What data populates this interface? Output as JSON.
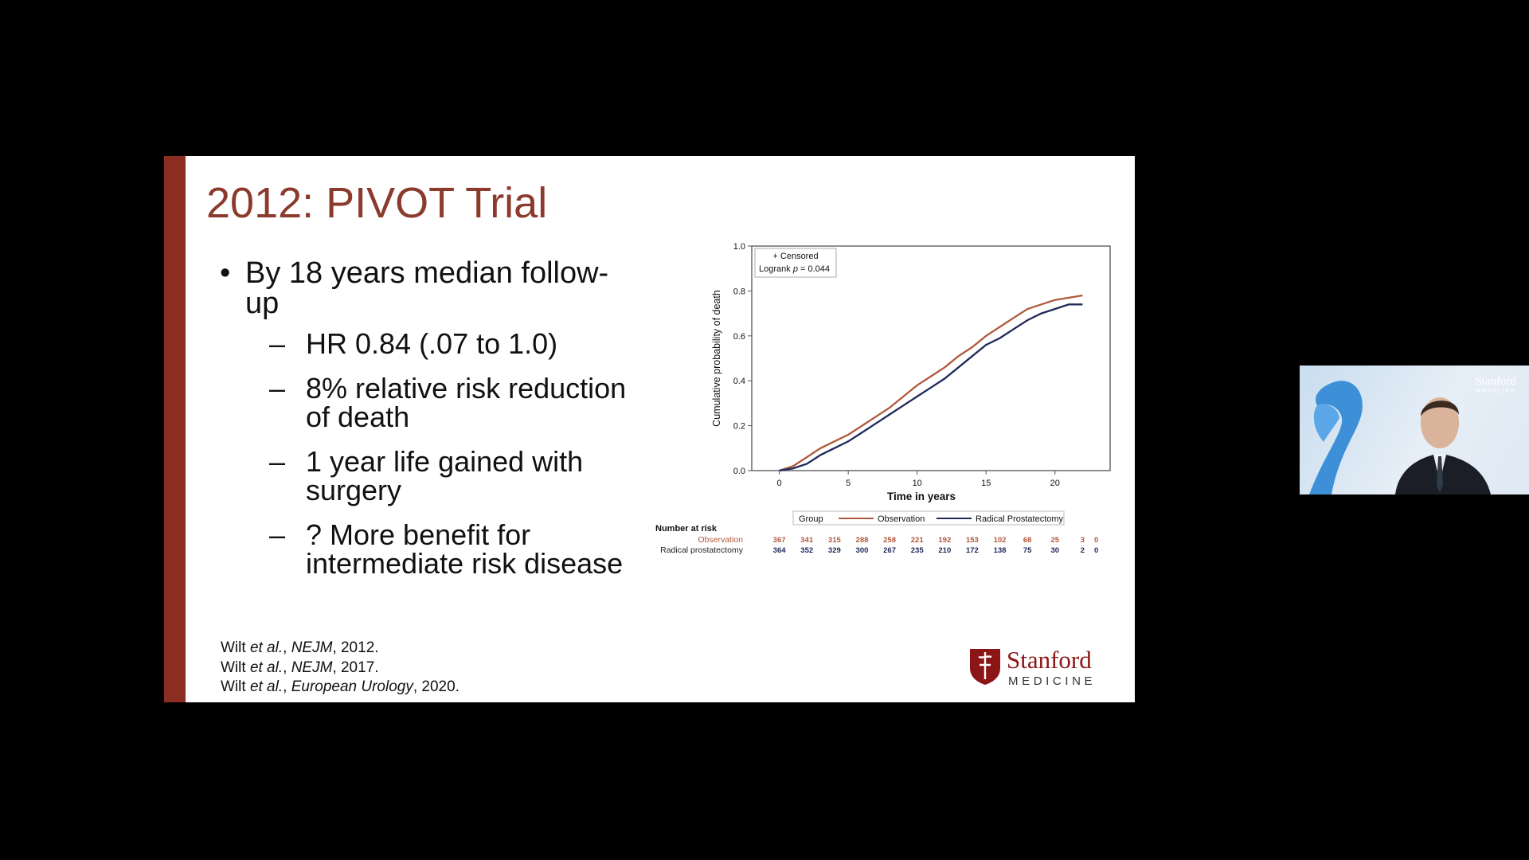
{
  "colors": {
    "accent": "#8c2d24",
    "title": "#8b3a2c",
    "observation": "#b05a3c",
    "prostatectomy": "#1f2a5a",
    "stanford_red": "#8c1515"
  },
  "slide": {
    "title": "2012: PIVOT Trial",
    "bullet": {
      "symbol": "•",
      "text": "By 18 years median follow-up",
      "subs": [
        {
          "symbol": "–",
          "text": "HR 0.84 (.07 to 1.0)"
        },
        {
          "symbol": "–",
          "text": "8% relative risk reduction of death"
        },
        {
          "symbol": "–",
          "text": "1 year life gained with surgery"
        },
        {
          "symbol": "–",
          "text": "? More benefit for intermediate risk disease"
        }
      ]
    },
    "citations": [
      {
        "author": "Wilt ",
        "etal": "et al.",
        "sep": ", ",
        "journal": "NEJM",
        "year": ", 2012."
      },
      {
        "author": "Wilt ",
        "etal": "et al.",
        "sep": ", ",
        "journal": "NEJM",
        "year": ", 2017."
      },
      {
        "author": "Wilt ",
        "etal": "et al.",
        "sep": ", ",
        "journal": "European Urology",
        "year": ", 2020."
      }
    ],
    "logo": {
      "word": "Stanford",
      "sub": "MEDICINE",
      "icon": "stanford-shield-icon"
    }
  },
  "chart_data": {
    "type": "line",
    "xlabel": "Time in years",
    "ylabel": "Cumulative probability of death",
    "xlim": [
      -2,
      24
    ],
    "ylim": [
      0,
      1.0
    ],
    "xticks": [
      0,
      5,
      10,
      15,
      20
    ],
    "yticks": [
      "0.0",
      "0.2",
      "0.4",
      "0.6",
      "0.8",
      "1.0"
    ],
    "grid": false,
    "annotation": {
      "censored": "+ Censored",
      "logrank_prefix": "Logrank ",
      "logrank_p": "p",
      "logrank_value": " = 0.044"
    },
    "legend": {
      "title": "Group",
      "position": "bottom"
    },
    "series": [
      {
        "name": "Observation",
        "x": [
          0,
          1,
          2,
          3,
          4,
          5,
          6,
          7,
          8,
          9,
          10,
          11,
          12,
          13,
          14,
          15,
          16,
          17,
          18,
          19,
          20,
          21,
          22
        ],
        "y": [
          0,
          0.02,
          0.06,
          0.1,
          0.13,
          0.16,
          0.2,
          0.24,
          0.28,
          0.33,
          0.38,
          0.42,
          0.46,
          0.51,
          0.55,
          0.6,
          0.64,
          0.68,
          0.72,
          0.74,
          0.76,
          0.77,
          0.78
        ]
      },
      {
        "name": "Radical Prostatectomy",
        "x": [
          0,
          1,
          2,
          3,
          4,
          5,
          6,
          7,
          8,
          9,
          10,
          11,
          12,
          13,
          14,
          15,
          16,
          17,
          18,
          19,
          20,
          21,
          22
        ],
        "y": [
          0,
          0.01,
          0.03,
          0.07,
          0.1,
          0.13,
          0.17,
          0.21,
          0.25,
          0.29,
          0.33,
          0.37,
          0.41,
          0.46,
          0.51,
          0.56,
          0.59,
          0.63,
          0.67,
          0.7,
          0.72,
          0.74,
          0.74
        ]
      }
    ],
    "risk_table": {
      "title": "Number at risk",
      "x": [
        0,
        2,
        4,
        6,
        8,
        10,
        12,
        14,
        16,
        18,
        20,
        22,
        23
      ],
      "rows": [
        {
          "label": "Observation",
          "values": [
            "367",
            "341",
            "315",
            "288",
            "258",
            "221",
            "192",
            "153",
            "102",
            "68",
            "25",
            "3",
            "0"
          ]
        },
        {
          "label": "Radical prostatectomy",
          "values": [
            "364",
            "352",
            "329",
            "300",
            "267",
            "235",
            "210",
            "172",
            "138",
            "75",
            "30",
            "2",
            "0"
          ]
        }
      ]
    }
  },
  "webcam": {
    "logo_word": "Stanford",
    "logo_sub": "MEDICINE"
  }
}
